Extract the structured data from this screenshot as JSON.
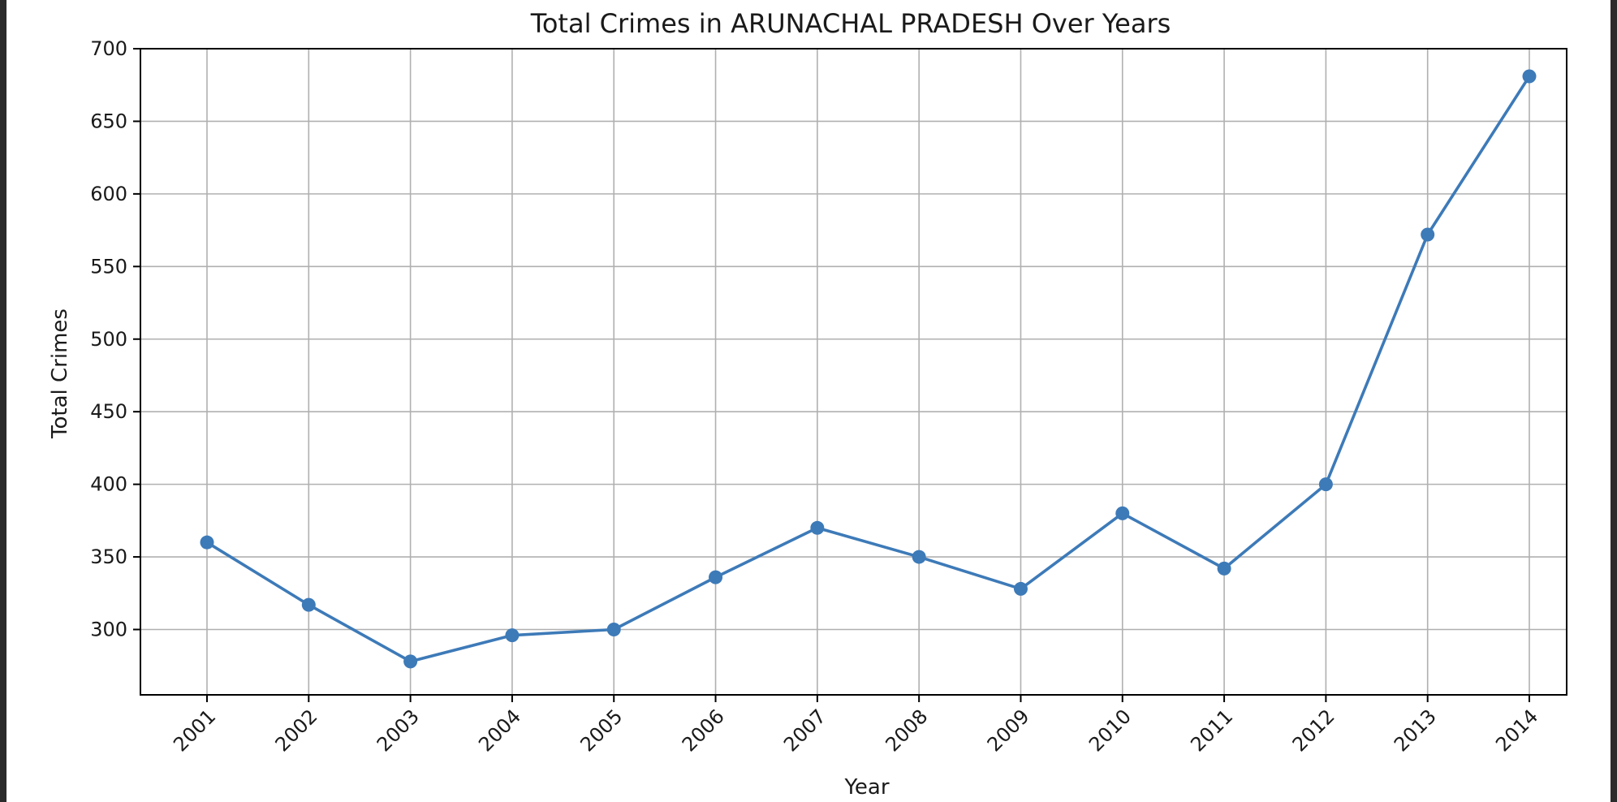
{
  "chart_data": {
    "type": "line",
    "title": "Total Crimes in ARUNACHAL PRADESH Over Years",
    "xlabel": "Year",
    "ylabel": "Total Crimes",
    "x": [
      "2001",
      "2002",
      "2003",
      "2004",
      "2005",
      "2006",
      "2007",
      "2008",
      "2009",
      "2010",
      "2011",
      "2012",
      "2013",
      "2014"
    ],
    "series": [
      {
        "values": [
          360,
          317,
          278,
          296,
          300,
          336,
          370,
          350,
          328,
          380,
          342,
          400,
          572,
          681
        ],
        "color": "#3d7ab8",
        "marker": "circle"
      }
    ],
    "ylim": [
      255,
      700
    ],
    "yticks": [
      "300",
      "350",
      "400",
      "450",
      "500",
      "550",
      "600",
      "650",
      "700"
    ],
    "grid": true,
    "x_tick_rotation": "45deg"
  }
}
